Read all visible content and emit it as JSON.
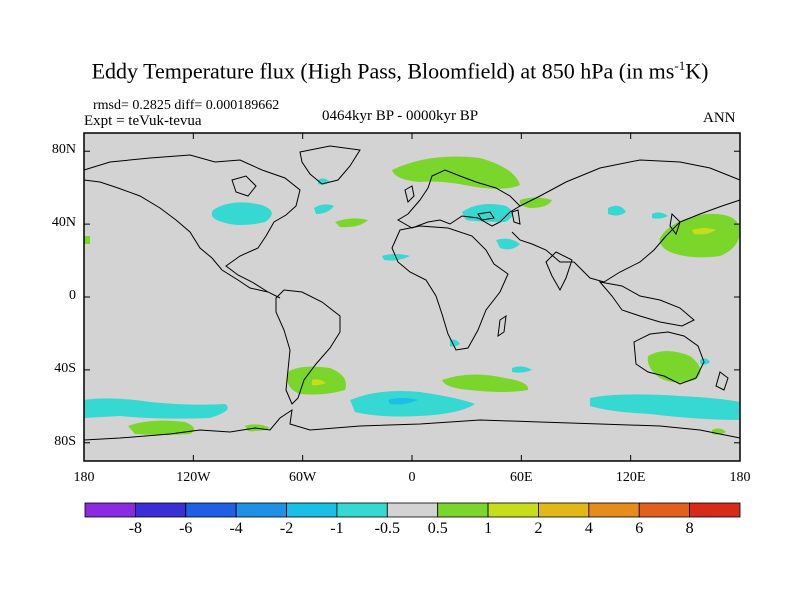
{
  "title": "Eddy Temperature flux (High Pass, Bloomfield) at 850 hPa (in ms",
  "title_sup": "-1",
  "title_end": "K)",
  "stats": "rmsd= 0.2825  diff= 0.000189662",
  "experiment": "Expt = teVuk-tevua",
  "period": "0464kyr BP - 0000kyr BP",
  "season": "ANN",
  "lat_labels": [
    "80N",
    "40N",
    "0",
    "40S",
    "80S"
  ],
  "lon_labels": [
    "180",
    "120W",
    "60W",
    "0",
    "60E",
    "120E",
    "180"
  ],
  "colorbar": {
    "labels": [
      "-8",
      "-6",
      "-4",
      "-2",
      "-1",
      "-0.5",
      "0.5",
      "1",
      "2",
      "4",
      "6",
      "8"
    ],
    "colors": [
      "#8a2be2",
      "#3a2fd6",
      "#1f5fe6",
      "#1e90e6",
      "#19bfe6",
      "#36d8d2",
      "#d3d3d3",
      "#7ad62a",
      "#c6dd1a",
      "#e2b818",
      "#e68c1c",
      "#e2601c",
      "#d82a1a"
    ]
  },
  "map_colors": {
    "background": "#d3d3d3",
    "neg_small": "#36d8d2",
    "neg_medium": "#19bfe6",
    "pos_small": "#7ad62a",
    "pos_medium": "#c6dd1a"
  }
}
